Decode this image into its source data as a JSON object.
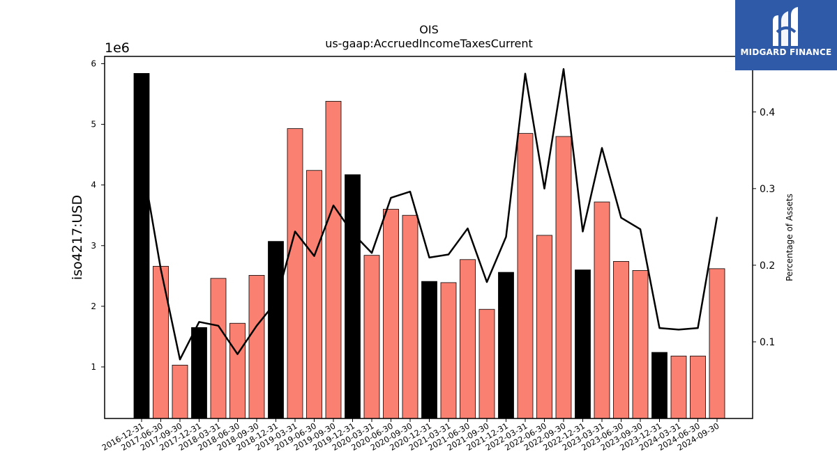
{
  "brand": {
    "name": "MIDGARD FINANCE",
    "icon": "midgard-logo-icon",
    "background": "#2f5aa8"
  },
  "chart_data": {
    "type": "bar",
    "title": "OIS",
    "subtitle": "us-gaap:AccruedIncomeTaxesCurrent",
    "ylabel": "iso4217:USD",
    "y_scale_label": "1e6",
    "y2label": "Percentage of Assets",
    "ylim": [
      0.15,
      6.12
    ],
    "y2lim": [
      0.0,
      0.4725
    ],
    "yticks": [
      "1",
      "2",
      "3",
      "4",
      "5",
      "6"
    ],
    "y2ticks": [
      "0.1",
      "0.2",
      "0.3",
      "0.4"
    ],
    "categories": [
      "2016-12-31",
      "2017-06-30",
      "2017-09-30",
      "2017-12-31",
      "2018-03-31",
      "2018-06-30",
      "2018-09-30",
      "2018-12-31",
      "2019-03-31",
      "2019-06-30",
      "2019-09-30",
      "2019-12-31",
      "2020-03-31",
      "2020-06-30",
      "2020-09-30",
      "2020-12-31",
      "2021-03-31",
      "2021-06-30",
      "2021-09-30",
      "2021-12-31",
      "2022-03-31",
      "2022-06-30",
      "2022-09-30",
      "2022-12-31",
      "2023-03-31",
      "2023-06-30",
      "2023-09-30",
      "2023-12-31",
      "2024-03-31",
      "2024-06-30",
      "2024-09-30"
    ],
    "series": [
      {
        "type": "bar",
        "values": [
          5.84,
          2.66,
          1.03,
          1.65,
          2.46,
          1.72,
          2.51,
          3.07,
          4.93,
          4.24,
          5.38,
          4.17,
          2.84,
          3.6,
          3.5,
          2.41,
          2.39,
          2.77,
          1.95,
          2.56,
          4.85,
          3.17,
          4.8,
          2.6,
          3.72,
          2.74,
          2.59,
          1.24,
          1.18,
          1.18,
          2.62
        ],
        "colors": [
          "#000000",
          "#fa8072",
          "#fa8072",
          "#000000",
          "#fa8072",
          "#fa8072",
          "#fa8072",
          "#000000",
          "#fa8072",
          "#fa8072",
          "#fa8072",
          "#000000",
          "#fa8072",
          "#fa8072",
          "#fa8072",
          "#000000",
          "#fa8072",
          "#fa8072",
          "#fa8072",
          "#000000",
          "#fa8072",
          "#fa8072",
          "#fa8072",
          "#000000",
          "#fa8072",
          "#fa8072",
          "#fa8072",
          "#000000",
          "#fa8072",
          "#fa8072",
          "#fa8072"
        ]
      },
      {
        "type": "line",
        "axis": "right",
        "color": "#000000",
        "values": [
          0.34,
          0.195,
          0.077,
          0.126,
          0.121,
          0.084,
          0.121,
          0.152,
          0.244,
          0.212,
          0.278,
          0.242,
          0.216,
          0.288,
          0.296,
          0.21,
          0.214,
          0.248,
          0.178,
          0.237,
          0.45,
          0.3,
          0.456,
          0.244,
          0.353,
          0.262,
          0.247,
          0.118,
          0.116,
          0.118,
          0.263
        ]
      }
    ],
    "grid": false
  }
}
